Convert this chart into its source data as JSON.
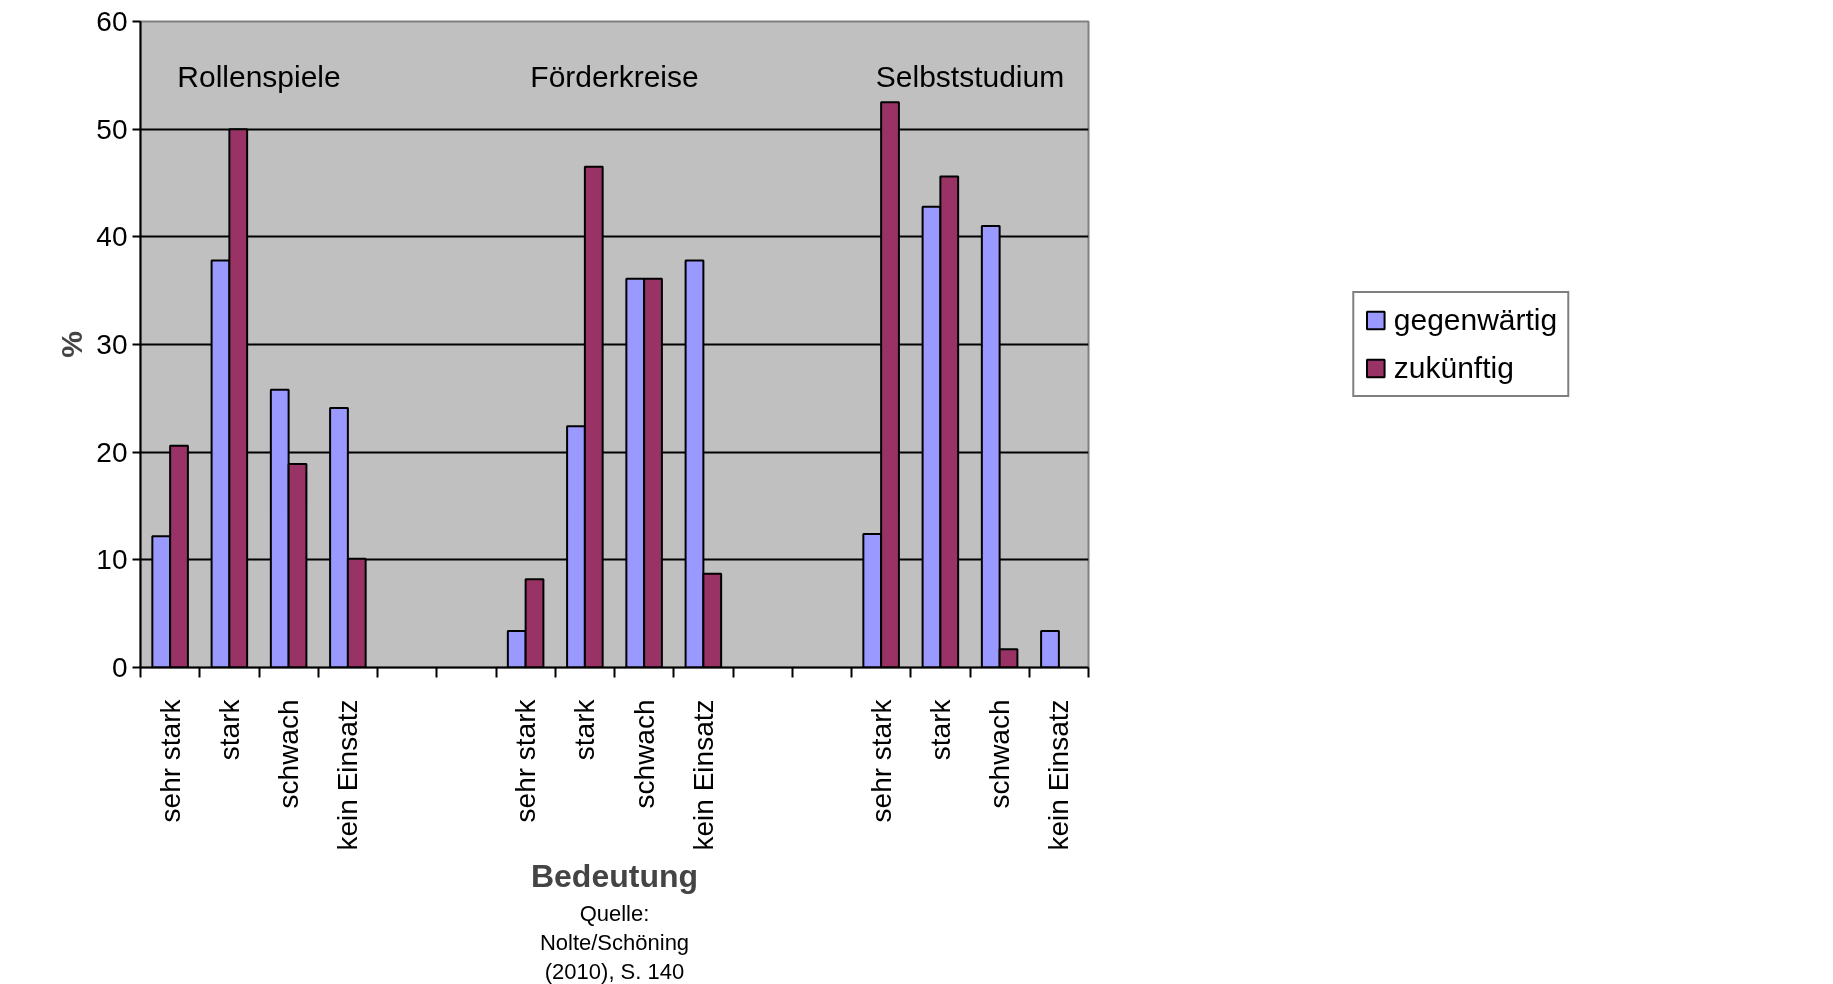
{
  "chart_data": {
    "type": "bar",
    "xlabel": "Bedeutung",
    "ylabel": "%",
    "categories": [
      "sehr stark",
      "stark",
      "schwach",
      "kein Einsatz",
      null,
      null,
      "sehr stark",
      "stark",
      "schwach",
      "kein Einsatz",
      null,
      null,
      "sehr stark",
      "stark",
      "schwach",
      "kein Einsatz"
    ],
    "series": [
      {
        "name": "gegenwärtig",
        "color": "#9999ff",
        "values": [
          12.2,
          37.8,
          25.8,
          24.1,
          null,
          null,
          3.4,
          22.4,
          36.1,
          37.8,
          null,
          null,
          12.4,
          42.8,
          41.0,
          3.4
        ]
      },
      {
        "name": "zukünftig",
        "color": "#993366",
        "values": [
          20.6,
          50.0,
          18.9,
          10.1,
          null,
          null,
          8.2,
          46.5,
          36.1,
          8.7,
          null,
          null,
          52.5,
          45.6,
          1.7,
          null
        ]
      }
    ],
    "ylim": [
      0,
      60
    ],
    "yticks": [
      0,
      10,
      20,
      30,
      40,
      50,
      60
    ],
    "grid": "y",
    "legend": "right",
    "annotations": [
      "Rollenspiele",
      "Förderkreise",
      "Selbststudium",
      "Quelle:\nNolte/Schöning\n(2010), S. 140"
    ]
  }
}
